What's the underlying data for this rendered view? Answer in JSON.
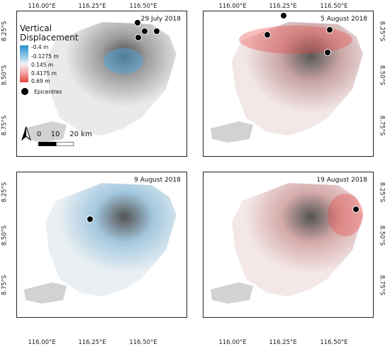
{
  "axes": {
    "lon_ticks": [
      "116.00°E",
      "116.25°E",
      "116.50°E"
    ],
    "lat_ticks": [
      "8.25°S",
      "8.50°S",
      "8.75°S"
    ]
  },
  "panels": [
    {
      "date": "29 July 2018"
    },
    {
      "date": "5 August 2018"
    },
    {
      "date": "9 August 2018"
    },
    {
      "date": "19 August 2018"
    }
  ],
  "legend": {
    "title_line1": "Vertical",
    "title_line2": "Displacement",
    "ramp_labels": [
      "-0.4 m",
      "-0.1275 m",
      "0.145 m",
      "0.4175 m",
      "0.69 m"
    ],
    "epicentres_label": "Epicentres",
    "colors": {
      "min": "#2e8fd1",
      "mid": "#f2f2f2",
      "max": "#e8413f"
    }
  },
  "scale": {
    "labels": [
      "0",
      "10",
      "20 km"
    ],
    "north_icon": "north-arrow-icon"
  }
}
